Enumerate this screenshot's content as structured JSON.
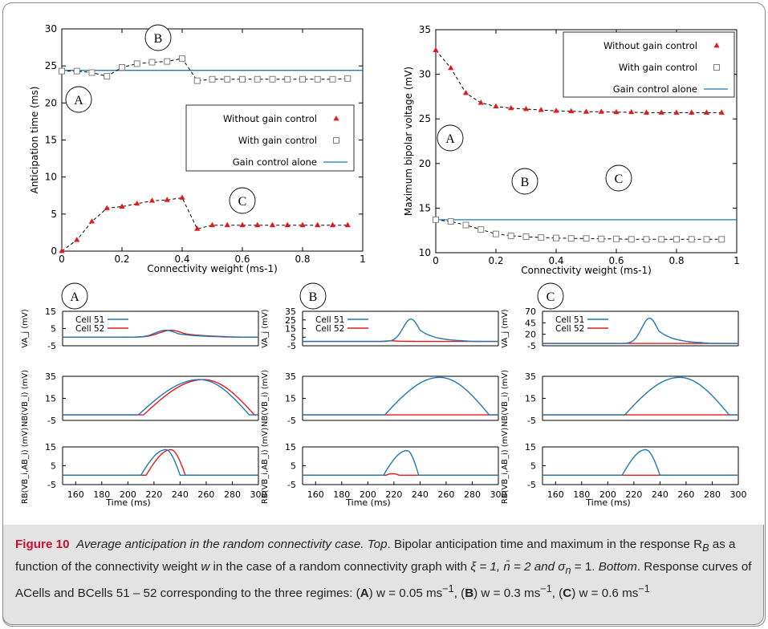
{
  "figure_label": "Figure 10",
  "caption_title": "Average anticipation in the random connectivity case.",
  "caption_top_label": "Top",
  "caption_top_text": ". Bipolar anticipation time and maximum in the response R",
  "caption_top_text2": " as a function of the connectivity weight ",
  "caption_top_text3": " in the case of a random connectivity graph with",
  "caption_params": "ξ = 1, n̄ = 2 and σ",
  "caption_params2": " = 1.",
  "caption_bottom_label": "Bottom",
  "caption_bottom_text": ". Response curves of ACells and BCells 51 – 52 corresponding to the three regimes: (",
  "caption_regime_a": "A",
  "caption_regime_a_val": ") w = 0.05 ms",
  "caption_regime_b": "B",
  "caption_regime_b_val": ") w = 0.3 ms",
  "caption_regime_c": "C",
  "caption_regime_c_val": ") w = 0.6 ms",
  "caption_unit_exp": "−1",
  "caption_sub_B": "B",
  "caption_sub_n": "n",
  "caption_w": "w",
  "caption_sep1": ", (",
  "caption_sep2": ", (",
  "colors": {
    "red": "#e31a1c",
    "blue": "#1f77b4",
    "square": "#7f7f7f"
  },
  "chart_data": [
    {
      "id": "top-left",
      "type": "line",
      "ylabel": "Anticipation time (ms)",
      "xlabel": "Connectivity weight (ms-1)",
      "xlim": [
        0,
        1
      ],
      "ylim": [
        0,
        30
      ],
      "xticks": [
        "0",
        "0.2",
        "0.4",
        "0.6",
        "0.8",
        "1"
      ],
      "yticks": [
        "0",
        "5",
        "10",
        "15",
        "20",
        "25",
        "30"
      ],
      "legend": [
        "Without gain control",
        "With gain control",
        "Gain control alone"
      ],
      "circle_labels": [
        "A",
        "B",
        "C"
      ],
      "series": [
        {
          "name": "Without gain control",
          "marker": "triangle",
          "color": "#e31a1c",
          "x": [
            0,
            0.05,
            0.1,
            0.15,
            0.2,
            0.25,
            0.3,
            0.35,
            0.4,
            0.45,
            0.5,
            0.55,
            0.6,
            0.65,
            0.7,
            0.75,
            0.8,
            0.85,
            0.9,
            0.95
          ],
          "y": [
            0,
            1.5,
            4,
            5.8,
            6,
            6.4,
            6.8,
            6.9,
            7.2,
            3,
            3.5,
            3.5,
            3.5,
            3.5,
            3.5,
            3.5,
            3.5,
            3.5,
            3.5,
            3.5
          ]
        },
        {
          "name": "With gain control",
          "marker": "square",
          "color": "#7f7f7f",
          "x": [
            0,
            0.05,
            0.1,
            0.15,
            0.2,
            0.25,
            0.3,
            0.35,
            0.4,
            0.45,
            0.5,
            0.55,
            0.6,
            0.65,
            0.7,
            0.75,
            0.8,
            0.85,
            0.9,
            0.95
          ],
          "y": [
            24.3,
            24.3,
            24.1,
            23.6,
            24.8,
            25.3,
            25.5,
            25.6,
            26,
            23,
            23.2,
            23.2,
            23.2,
            23.2,
            23.2,
            23.2,
            23.2,
            23.2,
            23.2,
            23.3
          ]
        },
        {
          "name": "Gain control alone",
          "marker": "line",
          "color": "#1f77b4",
          "constant": 24.4
        }
      ]
    },
    {
      "id": "top-right",
      "type": "line",
      "ylabel": "Maximum bipolar voltage (mV)",
      "xlabel": "Connectivity weight (ms-1)",
      "xlim": [
        0,
        1
      ],
      "ylim": [
        10,
        35
      ],
      "xticks": [
        "0",
        "0.2",
        "0.4",
        "0.6",
        "0.8",
        "1"
      ],
      "yticks": [
        "10",
        "15",
        "20",
        "25",
        "30",
        "35"
      ],
      "legend": [
        "Without gain control",
        "With gain control",
        "Gain control alone"
      ],
      "circle_labels": [
        "A",
        "B",
        "C"
      ],
      "series": [
        {
          "name": "Without gain control",
          "marker": "triangle",
          "color": "#e31a1c",
          "x": [
            0,
            0.05,
            0.1,
            0.15,
            0.2,
            0.25,
            0.3,
            0.35,
            0.4,
            0.45,
            0.5,
            0.55,
            0.6,
            0.65,
            0.7,
            0.75,
            0.8,
            0.85,
            0.9,
            0.95
          ],
          "y": [
            32.7,
            30.7,
            27.9,
            26.8,
            26.4,
            26.2,
            26.1,
            26,
            25.9,
            25.85,
            25.8,
            25.8,
            25.75,
            25.75,
            25.7,
            25.7,
            25.7,
            25.7,
            25.7,
            25.7
          ]
        },
        {
          "name": "With gain control",
          "marker": "square",
          "color": "#7f7f7f",
          "x": [
            0,
            0.05,
            0.1,
            0.15,
            0.2,
            0.25,
            0.3,
            0.35,
            0.4,
            0.45,
            0.5,
            0.55,
            0.6,
            0.65,
            0.7,
            0.75,
            0.8,
            0.85,
            0.9,
            0.95
          ],
          "y": [
            13.7,
            13.5,
            13.1,
            12.6,
            12.1,
            11.9,
            11.8,
            11.7,
            11.65,
            11.6,
            11.6,
            11.55,
            11.55,
            11.5,
            11.5,
            11.5,
            11.5,
            11.5,
            11.5,
            11.5
          ]
        },
        {
          "name": "Gain control alone",
          "marker": "line",
          "color": "#1f77b4",
          "constant": 13.7
        }
      ]
    },
    {
      "id": "bottom-grid",
      "type": "line",
      "columns": [
        "A",
        "B",
        "C"
      ],
      "xlabel": "Time (ms)",
      "xlim": [
        150,
        300
      ],
      "xticks": [
        "160",
        "180",
        "200",
        "220",
        "240",
        "260",
        "280",
        "300"
      ],
      "legend": [
        "Cell 51",
        "Cell 52"
      ],
      "row_ylabels": [
        "VA_j (mV)",
        "NB(VB_i) (mV)",
        "RB(VB_i,AB_i) (mV)"
      ],
      "panels": [
        {
          "col": "A",
          "row": 0,
          "ylim": [
            -5,
            15
          ],
          "yticks": [
            "-5",
            "5",
            "15"
          ],
          "series": [
            {
              "name": "Cell 51",
              "peak": 4,
              "center": 229,
              "width": 8,
              "onset": 195
            },
            {
              "name": "Cell 52",
              "peak": 4,
              "center": 233,
              "width": 9,
              "onset": 198
            }
          ]
        },
        {
          "col": "A",
          "row": 1,
          "ylim": [
            -5,
            35
          ],
          "yticks": [
            "-5",
            "15",
            "35"
          ],
          "series": [
            {
              "name": "Cell 51",
              "peak": 32,
              "start": 208,
              "apex": 255,
              "end": 293
            },
            {
              "name": "Cell 52",
              "peak": 32,
              "start": 212,
              "apex": 258,
              "end": 297
            }
          ]
        },
        {
          "col": "A",
          "row": 2,
          "ylim": [
            -5,
            15
          ],
          "yticks": [
            "-5",
            "5",
            "15"
          ],
          "series": [
            {
              "name": "Cell 51",
              "peak": 13.5,
              "start": 210,
              "apex": 229,
              "end": 240
            },
            {
              "name": "Cell 52",
              "peak": 13.5,
              "start": 214,
              "apex": 233,
              "end": 244
            }
          ]
        },
        {
          "col": "B",
          "row": 0,
          "ylim": [
            -5,
            35
          ],
          "yticks": [
            "-5",
            "5",
            "15",
            "25",
            "35"
          ],
          "series": [
            {
              "name": "Cell 51",
              "peak": 26,
              "center": 233,
              "width": 6,
              "onset": 210
            },
            {
              "name": "Cell 52",
              "peak": 0.8,
              "center": 218,
              "width": 4,
              "onset": 210
            }
          ]
        },
        {
          "col": "B",
          "row": 1,
          "ylim": [
            -5,
            35
          ],
          "yticks": [
            "-5",
            "15",
            "35"
          ],
          "series": [
            {
              "name": "Cell 51",
              "peak": 34,
              "start": 213,
              "apex": 255,
              "end": 293
            },
            {
              "name": "Cell 52",
              "peak": 0,
              "start": 213,
              "apex": 255,
              "end": 293
            }
          ]
        },
        {
          "col": "B",
          "row": 2,
          "ylim": [
            -5,
            15
          ],
          "yticks": [
            "-5",
            "5",
            "15"
          ],
          "series": [
            {
              "name": "Cell 51",
              "peak": 13,
              "start": 212,
              "apex": 230,
              "end": 239
            },
            {
              "name": "Cell 52",
              "peak": 0.8,
              "start": 214,
              "apex": 219,
              "end": 224
            }
          ]
        },
        {
          "col": "C",
          "row": 0,
          "ylim": [
            -5,
            70
          ],
          "yticks": [
            "-5",
            "20",
            "45",
            "70"
          ],
          "series": [
            {
              "name": "Cell 51",
              "peak": 55,
              "center": 232,
              "width": 6,
              "onset": 210
            },
            {
              "name": "Cell 52",
              "peak": 0,
              "center": 232,
              "width": 6,
              "onset": 210
            }
          ]
        },
        {
          "col": "C",
          "row": 1,
          "ylim": [
            -5,
            35
          ],
          "yticks": [
            "-5",
            "15",
            "35"
          ],
          "series": [
            {
              "name": "Cell 51",
              "peak": 34,
              "start": 213,
              "apex": 255,
              "end": 293
            },
            {
              "name": "Cell 52",
              "peak": 0,
              "start": 213,
              "apex": 255,
              "end": 293
            }
          ]
        },
        {
          "col": "C",
          "row": 2,
          "ylim": [
            -5,
            15
          ],
          "yticks": [
            "-5",
            "5",
            "15"
          ],
          "series": [
            {
              "name": "Cell 51",
              "peak": 13.5,
              "start": 211,
              "apex": 229,
              "end": 240
            },
            {
              "name": "Cell 52",
              "peak": 0,
              "start": 211,
              "apex": 229,
              "end": 240
            }
          ]
        }
      ]
    }
  ]
}
